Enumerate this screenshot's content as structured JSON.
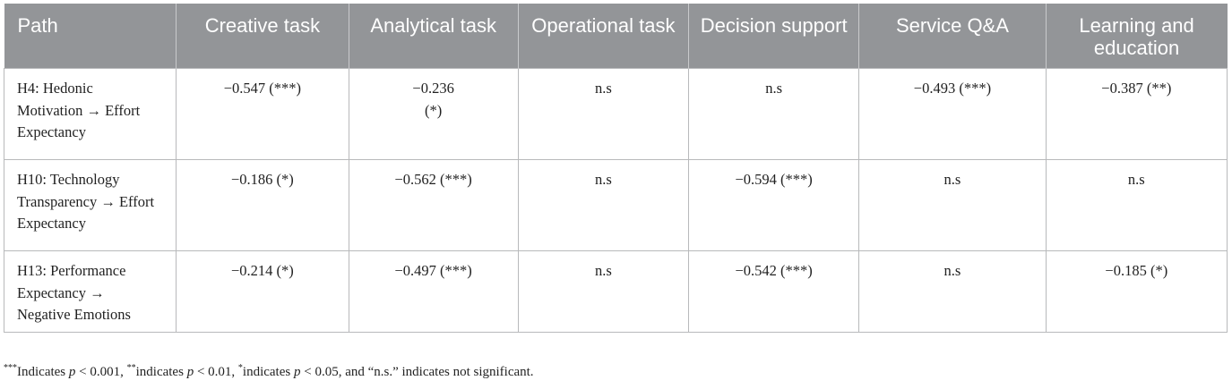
{
  "table": {
    "headers": [
      "Path",
      "Creative task",
      "Analytical task",
      "Operational task",
      "Decision support",
      "Service Q&A",
      "Learning and education"
    ],
    "rows": [
      {
        "path": "H4: Hedonic Motivation → Effort Expectancy",
        "cells": [
          "−0.547 (***)",
          "−0.236 (*)",
          "n.s",
          "n.s",
          "−0.493 (***)",
          "−0.387 (**)"
        ]
      },
      {
        "path": "H10: Technology Transparency → Effort Expectancy",
        "cells": [
          "−0.186 (*)",
          "−0.562 (***)",
          "n.s",
          "−0.594 (***)",
          "n.s",
          "n.s"
        ]
      },
      {
        "path": "H13: Performance Expectancy → Negative Emotions",
        "cells": [
          "−0.214 (*)",
          "−0.497 (***)",
          "n.s",
          "−0.542 (***)",
          "n.s",
          "−0.185 (*)"
        ]
      }
    ]
  },
  "footnote": {
    "m1": "***",
    "t1": "Indicates ",
    "p1": "p",
    "t2": " < 0.001, ",
    "m2": "**",
    "t3": "indicates ",
    "p2": "p",
    "t4": " < 0.01, ",
    "m3": "*",
    "t5": "indicates ",
    "p3": "p",
    "t6": " < 0.05, and “n.s.” indicates not significant."
  }
}
